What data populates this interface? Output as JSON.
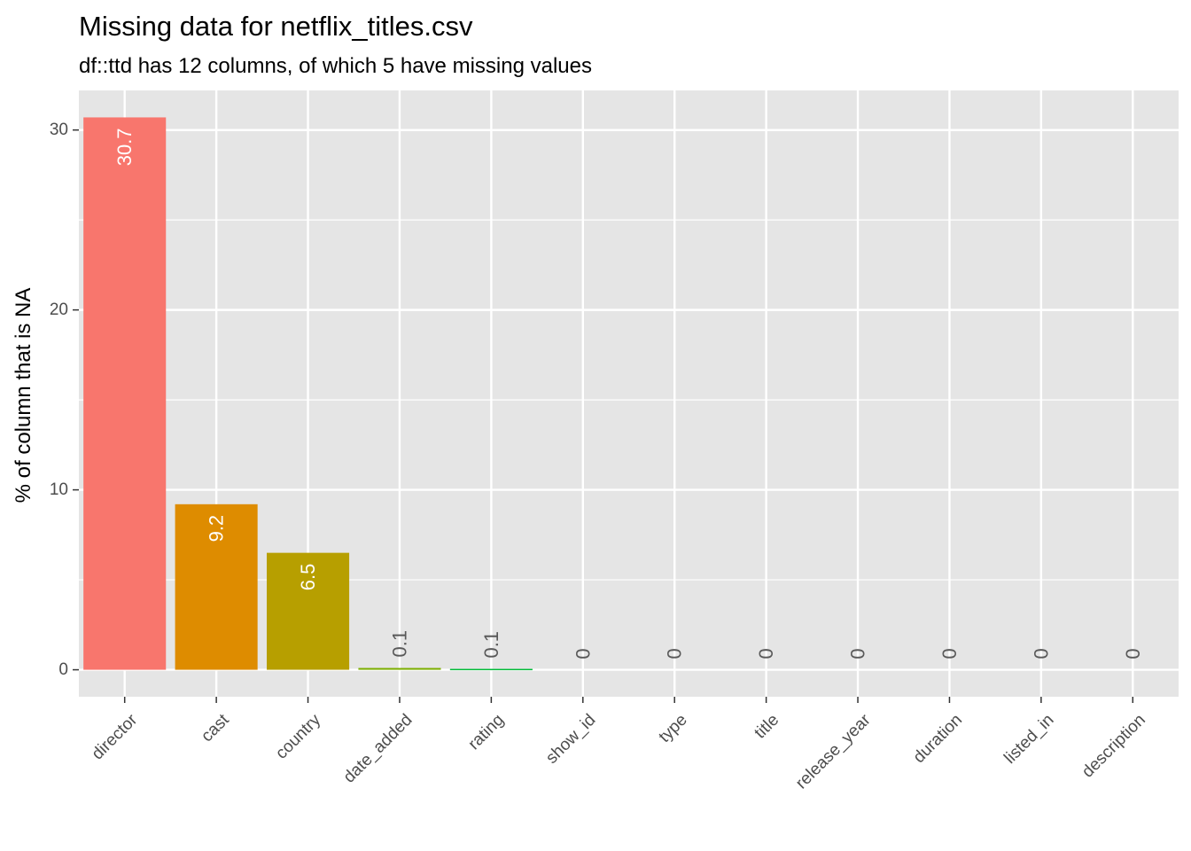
{
  "chart_data": {
    "type": "bar",
    "title": "Missing data for netflix_titles.csv",
    "subtitle": "df::ttd has 12 columns, of which 5 have missing values",
    "xlabel": "",
    "ylabel": "% of column that is NA",
    "ylim": [
      -1.5,
      32.2
    ],
    "yticks": [
      0,
      10,
      20,
      30
    ],
    "ytick_labels": [
      "0",
      "10",
      "20",
      "30"
    ],
    "grid": true,
    "legend": "none",
    "categories": [
      "director",
      "cast",
      "country",
      "date_added",
      "rating",
      "show_id",
      "type",
      "title",
      "release_year",
      "duration",
      "listed_in",
      "description"
    ],
    "values": [
      30.7,
      9.2,
      6.5,
      0.1,
      0.05,
      0,
      0,
      0,
      0,
      0,
      0,
      0
    ],
    "value_labels": [
      "30.7",
      "9.2",
      "6.5",
      "0.1",
      "0.1",
      "0",
      "0",
      "0",
      "0",
      "0",
      "0",
      "0"
    ],
    "colors": [
      "#F8766D",
      "#DE8C00",
      "#B79F00",
      "#7CAE00",
      "#00BA38",
      "#00C08B",
      "#00BFC4",
      "#00B4F0",
      "#619CFF",
      "#C77CFF",
      "#F564E3",
      "#FF64B0"
    ]
  },
  "style": {
    "panel_background": "#E5E5E5",
    "grid_color": "#FFFFFF",
    "inside_label_color": "#FFFFFF",
    "outside_label_color": "#595959"
  }
}
